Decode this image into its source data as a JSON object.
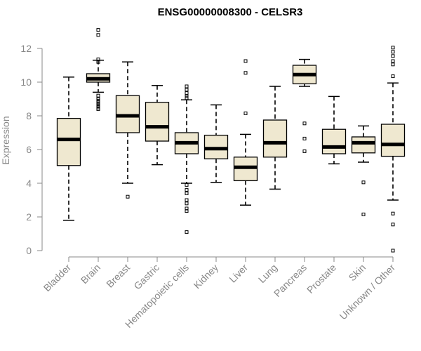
{
  "chart_data": {
    "type": "box",
    "title": "ENSG00000008300 - CELSR3",
    "xlabel": "",
    "ylabel": "Expression",
    "ylim": [
      0,
      12.5
    ],
    "yticks": [
      0,
      2,
      4,
      6,
      8,
      10,
      12
    ],
    "grid": false,
    "colors": {
      "box_fill": "#EFE8D0",
      "stroke": "#000000",
      "axis": "#888888"
    },
    "categories": [
      "Bladder",
      "Brain",
      "Breast",
      "Gastric",
      "Hematopoietic cells",
      "Kidney",
      "Liver",
      "Lung",
      "Pancreas",
      "Prostate",
      "Skin",
      "Unknown / Other"
    ],
    "boxes": [
      {
        "name": "Bladder",
        "whisker_low": 1.8,
        "q1": 5.05,
        "median": 6.6,
        "q3": 7.85,
        "whisker_high": 10.3,
        "outliers": []
      },
      {
        "name": "Brain",
        "whisker_low": 9.4,
        "q1": 10.0,
        "median": 10.2,
        "q3": 10.5,
        "whisker_high": 11.3,
        "outliers": [
          13.1,
          12.8,
          11.35,
          11.2,
          9.2,
          9.0,
          8.9,
          8.8,
          8.7,
          8.6,
          8.5,
          8.4
        ]
      },
      {
        "name": "Breast",
        "whisker_low": 4.0,
        "q1": 7.0,
        "median": 8.0,
        "q3": 9.2,
        "whisker_high": 11.2,
        "outliers": [
          3.2
        ]
      },
      {
        "name": "Gastric",
        "whisker_low": 5.1,
        "q1": 6.5,
        "median": 7.35,
        "q3": 8.8,
        "whisker_high": 9.8,
        "outliers": []
      },
      {
        "name": "Hematopoietic cells",
        "whisker_low": 4.0,
        "q1": 5.75,
        "median": 6.4,
        "q3": 7.0,
        "whisker_high": 8.95,
        "outliers": [
          9.75,
          9.55,
          9.35,
          9.15,
          9.05,
          3.9,
          3.6,
          3.4,
          3.0,
          2.8,
          2.5,
          2.35,
          1.1
        ]
      },
      {
        "name": "Kidney",
        "whisker_low": 4.05,
        "q1": 5.45,
        "median": 6.05,
        "q3": 6.85,
        "whisker_high": 8.65,
        "outliers": []
      },
      {
        "name": "Liver",
        "whisker_low": 2.7,
        "q1": 4.15,
        "median": 4.95,
        "q3": 5.55,
        "whisker_high": 6.9,
        "outliers": [
          11.25,
          10.55,
          8.15
        ]
      },
      {
        "name": "Lung",
        "whisker_low": 3.65,
        "q1": 5.55,
        "median": 6.4,
        "q3": 7.75,
        "whisker_high": 9.75,
        "outliers": []
      },
      {
        "name": "Pancreas",
        "whisker_low": 9.75,
        "q1": 9.9,
        "median": 10.45,
        "q3": 11.0,
        "whisker_high": 11.35,
        "outliers": [
          7.55,
          6.65,
          5.9
        ]
      },
      {
        "name": "Prostate",
        "whisker_low": 5.15,
        "q1": 5.75,
        "median": 6.15,
        "q3": 7.2,
        "whisker_high": 9.15,
        "outliers": []
      },
      {
        "name": "Skin",
        "whisker_low": 5.25,
        "q1": 5.8,
        "median": 6.4,
        "q3": 6.75,
        "whisker_high": 7.4,
        "outliers": [
          4.05,
          2.15
        ]
      },
      {
        "name": "Unknown / Other",
        "whisker_low": 3.0,
        "q1": 5.6,
        "median": 6.3,
        "q3": 7.5,
        "whisker_high": 9.95,
        "outliers": [
          12.05,
          11.8,
          11.55,
          11.25,
          11.05,
          10.35,
          2.2,
          1.55,
          0.0
        ]
      }
    ]
  }
}
